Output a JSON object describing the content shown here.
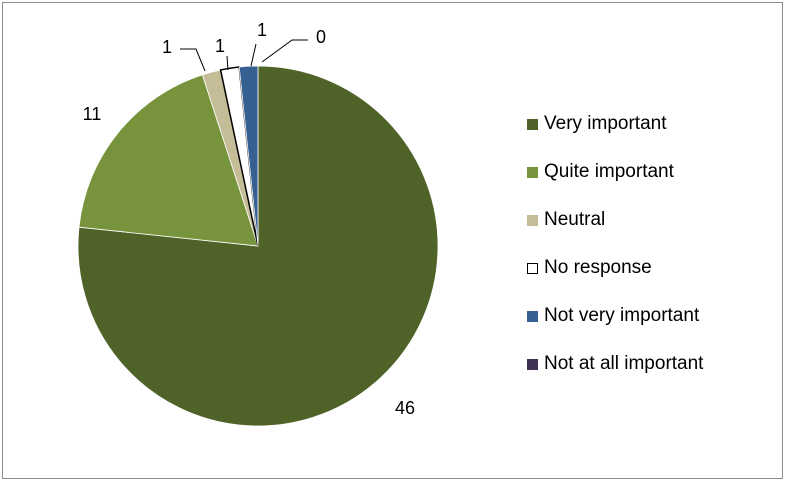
{
  "chart_data": {
    "type": "pie",
    "title": "",
    "categories": [
      "Very important",
      "Quite important",
      "Neutral",
      "No response",
      "Not very important",
      "Not at all important"
    ],
    "values": [
      46,
      11,
      1,
      1,
      1,
      0
    ],
    "data_labels": [
      "46",
      "11",
      "1",
      "1",
      "1",
      "0"
    ],
    "colors": [
      "#4F6228",
      "#77933C",
      "#C4BD97",
      "#FFFFFF",
      "#376092",
      "#403152"
    ],
    "start_angle_deg": 0,
    "direction": "clockwise",
    "legend_position": "right"
  }
}
